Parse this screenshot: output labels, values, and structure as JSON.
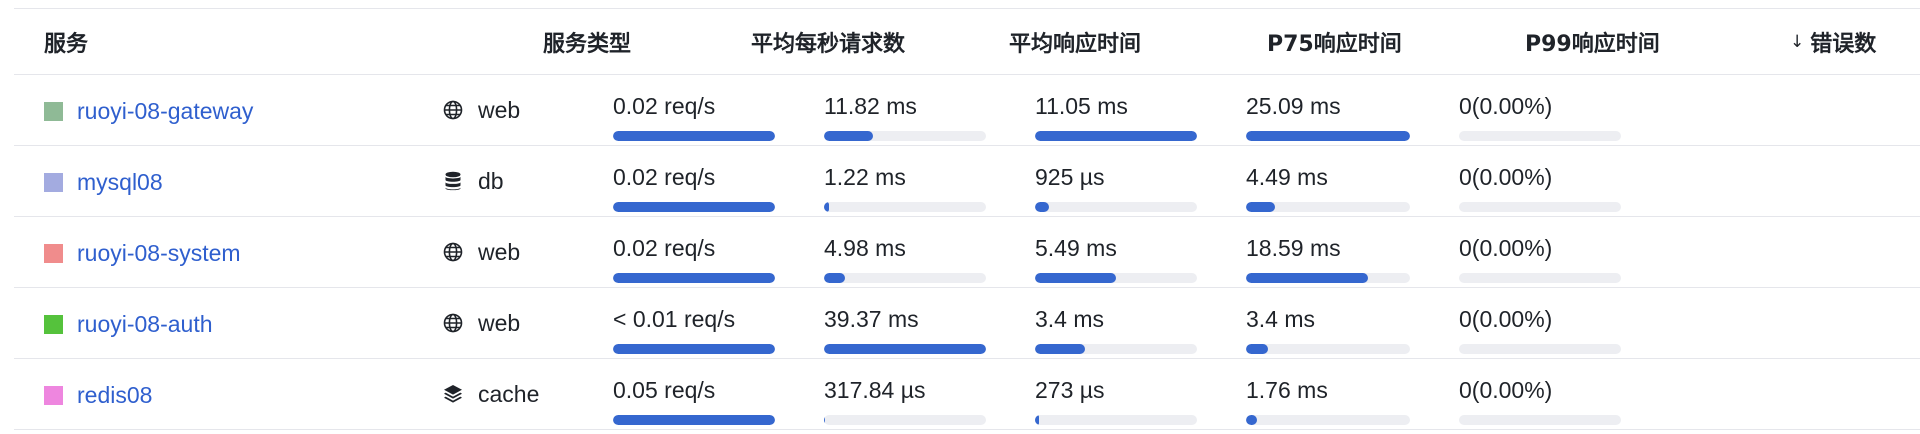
{
  "columns": {
    "service": "服务",
    "service_type": "服务类型",
    "avg_rps": "平均每秒请求数",
    "avg_latency": "平均响应时间",
    "p75_latency": "P75响应时间",
    "p99_latency": "P99响应时间",
    "errors": "错误数",
    "errors_sort_indicator": "↓"
  },
  "rows": [
    {
      "name": "ruoyi-08-gateway",
      "color": "#8fba96",
      "type": "web",
      "type_icon": "globe-icon",
      "rps": "0.02 req/s",
      "rps_level": 1.0,
      "avg": "11.82 ms",
      "avg_level": 0.3,
      "p75": "11.05 ms",
      "p75_level": 1.0,
      "p99": "25.09 ms",
      "p99_level": 1.0,
      "err": "0(0.00%)",
      "err_level": 0
    },
    {
      "name": "mysql08",
      "color": "#a3abe0",
      "type": "db",
      "type_icon": "database-icon",
      "rps": "0.02 req/s",
      "rps_level": 1.0,
      "avg": "1.22 ms",
      "avg_level": 0.031,
      "p75": "925 µs",
      "p75_level": 0.084,
      "p99": "4.49 ms",
      "p99_level": 0.179,
      "err": "0(0.00%)",
      "err_level": 0
    },
    {
      "name": "ruoyi-08-system",
      "color": "#f08c8c",
      "type": "web",
      "type_icon": "globe-icon",
      "rps": "0.02 req/s",
      "rps_level": 1.0,
      "avg": "4.98 ms",
      "avg_level": 0.127,
      "p75": "5.49 ms",
      "p75_level": 0.497,
      "p99": "18.59 ms",
      "p99_level": 0.741,
      "err": "0(0.00%)",
      "err_level": 0
    },
    {
      "name": "ruoyi-08-auth",
      "color": "#55c23c",
      "type": "web",
      "type_icon": "globe-icon",
      "rps": "< 0.01 req/s",
      "rps_level": 1.0,
      "avg": "39.37 ms",
      "avg_level": 1.0,
      "p75": "3.4 ms",
      "p75_level": 0.308,
      "p99": "3.4 ms",
      "p99_level": 0.136,
      "err": "0(0.00%)",
      "err_level": 0
    },
    {
      "name": "redis08",
      "color": "#ee86df",
      "type": "cache",
      "type_icon": "layers-icon",
      "rps": "0.05 req/s",
      "rps_level": 1.0,
      "avg": "317.84 µs",
      "avg_level": 0.008,
      "p75": "273 µs",
      "p75_level": 0.025,
      "p99": "1.76 ms",
      "p99_level": 0.07,
      "err": "0(0.00%)",
      "err_level": 0
    }
  ]
}
